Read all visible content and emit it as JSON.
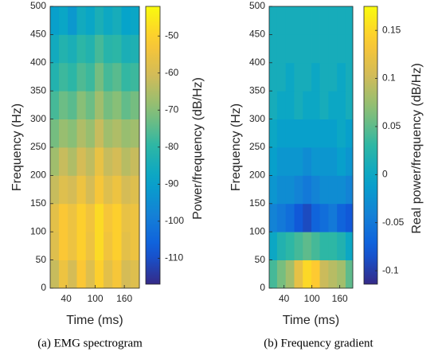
{
  "chart_data": [
    {
      "type": "heatmap",
      "caption": "(a) EMG spectrogram",
      "xlabel": "Time (ms)",
      "ylabel": "Frequency (Hz)",
      "colorbar_label": "Power/frequency (dB/Hz)",
      "colormap": "parula",
      "x": [
        16,
        34,
        53,
        71,
        90,
        108,
        126,
        145,
        163,
        182
      ],
      "y": [
        25,
        75,
        125,
        175,
        225,
        275,
        325,
        375,
        425,
        475
      ],
      "values": [
        [
          -62,
          -55,
          -60,
          -52,
          -58,
          -50,
          -57,
          -53,
          -60,
          -58
        ],
        [
          -58,
          -52,
          -55,
          -50,
          -55,
          -48,
          -54,
          -50,
          -57,
          -55
        ],
        [
          -57,
          -52,
          -55,
          -50,
          -54,
          -48,
          -53,
          -50,
          -56,
          -55
        ],
        [
          -62,
          -58,
          -60,
          -55,
          -60,
          -53,
          -58,
          -55,
          -60,
          -58
        ],
        [
          -67,
          -62,
          -65,
          -60,
          -63,
          -56,
          -62,
          -60,
          -64,
          -62
        ],
        [
          -72,
          -68,
          -70,
          -65,
          -68,
          -62,
          -67,
          -65,
          -68,
          -67
        ],
        [
          -77,
          -73,
          -75,
          -70,
          -73,
          -67,
          -72,
          -70,
          -74,
          -72
        ],
        [
          -82,
          -78,
          -80,
          -76,
          -78,
          -72,
          -77,
          -75,
          -79,
          -78
        ],
        [
          -86,
          -82,
          -84,
          -80,
          -82,
          -77,
          -81,
          -80,
          -84,
          -83
        ],
        [
          -90,
          -88,
          -92,
          -86,
          -88,
          -84,
          -87,
          -85,
          -89,
          -88
        ]
      ],
      "xlim": [
        7,
        191
      ],
      "xticks": [
        40,
        100,
        160
      ],
      "ylim": [
        0,
        500
      ],
      "yticks": [
        0,
        50,
        100,
        150,
        200,
        250,
        300,
        350,
        400,
        450,
        500
      ],
      "clim": [
        -117,
        -42
      ],
      "cticks": [
        -110,
        -100,
        -90,
        -80,
        -70,
        -60,
        -50
      ]
    },
    {
      "type": "heatmap",
      "caption": "(b) Frequency gradient",
      "xlabel": "Time (ms)",
      "ylabel": "Frequency (Hz)",
      "colorbar_label": "Real power/frequency (dB/Hz)",
      "colormap": "parula",
      "x": [
        16,
        34,
        53,
        71,
        90,
        108,
        126,
        145,
        163,
        182
      ],
      "y": [
        25,
        75,
        125,
        175,
        225,
        275,
        325,
        375,
        425,
        475
      ],
      "values": [
        [
          0.04,
          0.06,
          0.08,
          0.12,
          0.15,
          0.14,
          0.1,
          0.09,
          0.08,
          0.05
        ],
        [
          0,
          0.02,
          0.03,
          0.04,
          0.05,
          0.04,
          0.03,
          0.03,
          0.02,
          0
        ],
        [
          -0.04,
          -0.05,
          -0.06,
          -0.08,
          -0.09,
          -0.07,
          -0.06,
          -0.05,
          -0.07,
          -0.08
        ],
        [
          -0.02,
          -0.03,
          -0.03,
          -0.04,
          -0.05,
          -0.04,
          -0.03,
          -0.03,
          -0.03,
          -0.04
        ],
        [
          -0.01,
          -0.02,
          -0.02,
          -0.02,
          -0.03,
          -0.02,
          -0.02,
          -0.02,
          -0.01,
          -0.02
        ],
        [
          0,
          -0.01,
          -0.01,
          -0.01,
          -0.01,
          -0.01,
          -0.01,
          -0.01,
          0,
          -0.01
        ],
        [
          0.01,
          0,
          0,
          0.01,
          0,
          0,
          0.01,
          0,
          0,
          0.01
        ],
        [
          0.01,
          0.01,
          0,
          0.01,
          0.01,
          0,
          0.01,
          0.01,
          0,
          0.01
        ],
        [
          0.01,
          0.01,
          0.01,
          0.01,
          0.01,
          0.01,
          0.01,
          0.01,
          0.01,
          0.01
        ],
        [
          0.01,
          0.01,
          0.01,
          0.01,
          0.01,
          0.01,
          0.01,
          0.01,
          0.01,
          0.01
        ]
      ],
      "xlim": [
        8,
        188
      ],
      "xticks": [
        40,
        100,
        160
      ],
      "ylim": [
        0,
        500
      ],
      "yticks": [
        0,
        50,
        100,
        150,
        200,
        250,
        300,
        350,
        400,
        450,
        500
      ],
      "clim": [
        -0.114,
        0.175
      ],
      "cticks": [
        -0.1,
        -0.05,
        0,
        0.05,
        0.1,
        0.15
      ]
    }
  ]
}
